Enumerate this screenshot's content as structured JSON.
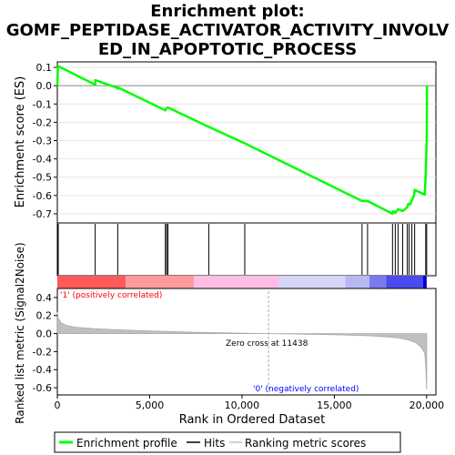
{
  "title_lines": [
    "Enrichment plot:",
    "GOMF_PEPTIDASE_ACTIVATOR_ACTIVITY_INVOLV",
    "ED_IN_APOPTOTIC_PROCESS"
  ],
  "colors": {
    "es_line": "#00ff00",
    "hits": "#000000",
    "positive_label": "#ff0000",
    "negative_label": "#0000ff",
    "metric_fill": "#c0c0c0",
    "zero_cross_line": "#aaaaaa"
  },
  "chart_data": [
    {
      "type": "line",
      "name": "enrichment-score",
      "ylabel": "Enrichment score (ES)",
      "xlim": [
        0,
        20500
      ],
      "ylim": [
        -0.75,
        0.13
      ],
      "yticks": [
        0.1,
        0.0,
        -0.1,
        -0.2,
        -0.3,
        -0.4,
        -0.5,
        -0.6,
        -0.7
      ],
      "ytick_labels": [
        "0.1",
        "0.0",
        "-0.1",
        "-0.2",
        "-0.3",
        "-0.4",
        "-0.5",
        "-0.6",
        "-0.7"
      ],
      "grid": true,
      "x": [
        0,
        30,
        80,
        2050,
        2060,
        3200,
        3260,
        3300,
        5850,
        5900,
        5950,
        6000,
        8200,
        10150,
        16500,
        16800,
        18150,
        18200,
        18300,
        18450,
        18700,
        18950,
        19000,
        19100,
        19200,
        19300,
        19350,
        19900,
        19950,
        20000,
        20010,
        20015
      ],
      "y": [
        0.0,
        0.1,
        0.105,
        0.005,
        0.03,
        -0.01,
        -0.015,
        -0.01,
        -0.135,
        -0.125,
        -0.12,
        -0.12,
        -0.225,
        -0.315,
        -0.63,
        -0.63,
        -0.7,
        -0.685,
        -0.695,
        -0.675,
        -0.685,
        -0.665,
        -0.645,
        -0.65,
        -0.625,
        -0.605,
        -0.57,
        -0.595,
        -0.48,
        -0.3,
        -0.05,
        0.0
      ]
    },
    {
      "type": "scatter",
      "name": "hits",
      "x": [
        50,
        2050,
        3270,
        5850,
        5920,
        5990,
        8200,
        10150,
        16500,
        16800,
        18150,
        18300,
        18450,
        18700,
        18950,
        19050,
        19200,
        19350,
        19950,
        20000
      ]
    },
    {
      "type": "heatmap",
      "name": "ranking-color-bar",
      "segments": [
        {
          "from": 0,
          "to": 3700,
          "color": "#ff5a5a"
        },
        {
          "from": 3700,
          "to": 7400,
          "color": "#ff9a9a"
        },
        {
          "from": 7400,
          "to": 12000,
          "color": "#ffbde6"
        },
        {
          "from": 12000,
          "to": 15600,
          "color": "#d6d6f8"
        },
        {
          "from": 15600,
          "to": 16900,
          "color": "#b8b8f0"
        },
        {
          "from": 16900,
          "to": 17800,
          "color": "#7a7af0"
        },
        {
          "from": 17800,
          "to": 19800,
          "color": "#4a4aee"
        },
        {
          "from": 19800,
          "to": 20500,
          "color": "#0000d0"
        }
      ]
    },
    {
      "type": "area",
      "name": "ranked-list-metric",
      "xlabel": "Rank in Ordered Dataset",
      "ylabel": "Ranked list metric (Signal2Noise)",
      "xlim": [
        0,
        20500
      ],
      "ylim": [
        -0.68,
        0.5
      ],
      "xticks": [
        0,
        5000,
        10000,
        15000,
        20000
      ],
      "xtick_labels": [
        "0",
        "5,000",
        "10,000",
        "15,000",
        "20,000"
      ],
      "yticks": [
        0.4,
        0.2,
        0.0,
        -0.2,
        -0.4,
        -0.6
      ],
      "ytick_labels": [
        "0.4",
        "0.2",
        "0.0",
        "-0.2",
        "-0.4",
        "-0.6"
      ],
      "x": [
        0,
        50,
        200,
        500,
        1000,
        2000,
        3000,
        5000,
        7500,
        10000,
        11438,
        13000,
        15000,
        17000,
        18000,
        18500,
        19000,
        19400,
        19700,
        19900,
        19950,
        20000
      ],
      "y": [
        0.24,
        0.17,
        0.12,
        0.09,
        0.07,
        0.055,
        0.045,
        0.03,
        0.015,
        0.005,
        0.0,
        -0.005,
        -0.012,
        -0.025,
        -0.04,
        -0.05,
        -0.07,
        -0.1,
        -0.15,
        -0.22,
        -0.35,
        -0.62
      ],
      "zero_cross": 11438,
      "annotations": {
        "positive": "'1' (positively correlated)",
        "negative": "'0' (negatively correlated)",
        "zero_cross": "Zero cross at 11438"
      }
    }
  ],
  "legend": {
    "items": [
      "Enrichment profile",
      "Hits",
      "Ranking metric scores"
    ]
  }
}
